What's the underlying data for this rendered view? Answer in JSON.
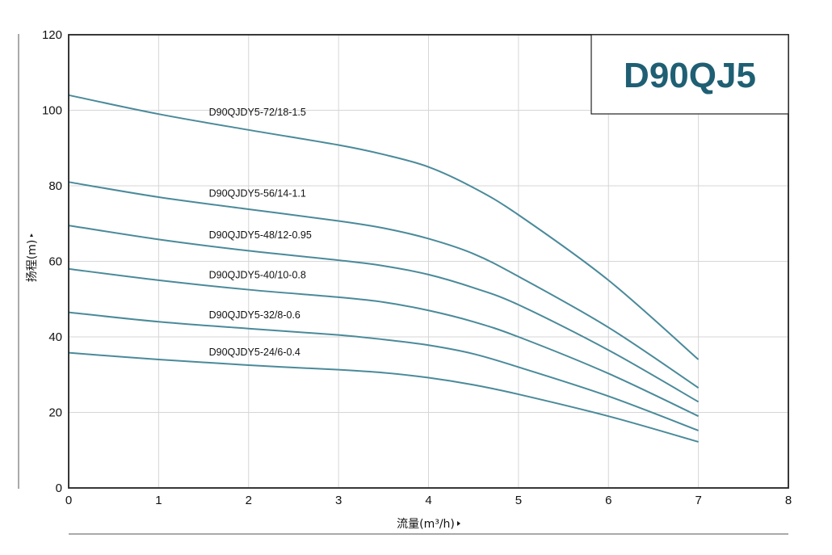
{
  "chart_data": {
    "type": "line",
    "title": "D90QJ5",
    "xlabel": "流量(m³/h)",
    "ylabel": "扬程(m)",
    "xlim": [
      0,
      8
    ],
    "ylim": [
      0,
      120
    ],
    "x_ticks": [
      "0",
      "1",
      "2",
      "3",
      "4",
      "5",
      "6",
      "7",
      "8"
    ],
    "y_ticks": [
      "0",
      "20",
      "40",
      "60",
      "80",
      "100",
      "120"
    ],
    "grid": true,
    "line_color": "#4a8a9a",
    "title_color": "#1f5f73",
    "x": [
      0,
      1,
      2,
      3,
      3.5,
      4,
      4.5,
      5,
      6,
      7
    ],
    "series": [
      {
        "name": "D90QJDY5-72/18-1.5",
        "values": [
          104,
          99,
          94.8,
          90.8,
          88.3,
          85,
          79.5,
          72.3,
          55,
          34
        ]
      },
      {
        "name": "D90QJDY5-56/14-1.1",
        "values": [
          81,
          77,
          73.8,
          70.7,
          68.8,
          66,
          62,
          56,
          42.5,
          26.5
        ]
      },
      {
        "name": "D90QJDY5-48/12-0.95",
        "values": [
          69.5,
          65.8,
          62.8,
          60.3,
          58.8,
          56.5,
          53,
          48.5,
          36.5,
          22.8
        ]
      },
      {
        "name": "D90QJDY5-40/10-0.8",
        "values": [
          58,
          55,
          52.5,
          50.5,
          49.2,
          47,
          44,
          40,
          30.3,
          19
        ]
      },
      {
        "name": "D90QJDY5-32/8-0.6",
        "values": [
          46.5,
          44,
          42.2,
          40.5,
          39.3,
          37.8,
          35.5,
          32,
          24.3,
          15.2
        ]
      },
      {
        "name": "D90QJDY5-24/6-0.4",
        "values": [
          35.8,
          34,
          32.5,
          31.3,
          30.5,
          29.2,
          27.3,
          24.8,
          19,
          12.2
        ]
      }
    ]
  }
}
